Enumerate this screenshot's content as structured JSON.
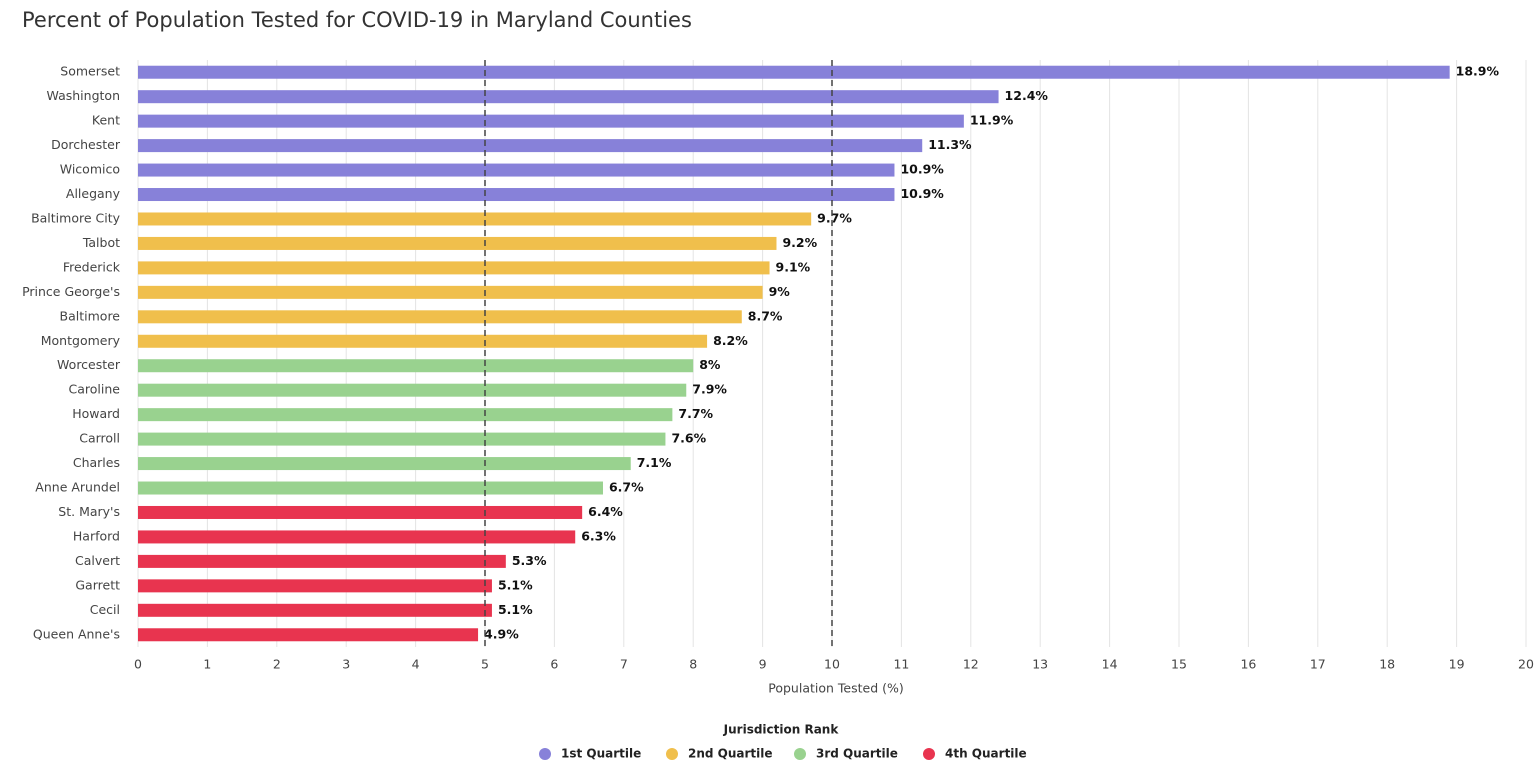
{
  "chart_data": {
    "type": "bar",
    "orientation": "horizontal",
    "title": "Percent of Population Tested for COVID-19 in Maryland Counties",
    "categories": [
      "Somerset",
      "Washington",
      "Kent",
      "Dorchester",
      "Wicomico",
      "Allegany",
      "Baltimore City",
      "Talbot",
      "Frederick",
      "Prince George's",
      "Baltimore",
      "Montgomery",
      "Worcester",
      "Caroline",
      "Howard",
      "Carroll",
      "Charles",
      "Anne Arundel",
      "St. Mary's",
      "Harford",
      "Calvert",
      "Garrett",
      "Cecil",
      "Queen Anne's"
    ],
    "series": [
      {
        "name": "1st Quartile",
        "color": "#8781d9",
        "values": [
          18.9,
          12.4,
          11.9,
          11.3,
          10.9,
          10.9,
          null,
          null,
          null,
          null,
          null,
          null,
          null,
          null,
          null,
          null,
          null,
          null,
          null,
          null,
          null,
          null,
          null,
          null
        ],
        "value_labels": [
          "18.9%",
          "12.4%",
          "11.9%",
          "11.3%",
          "10.9%",
          "10.9%",
          null,
          null,
          null,
          null,
          null,
          null,
          null,
          null,
          null,
          null,
          null,
          null,
          null,
          null,
          null,
          null,
          null,
          null
        ]
      },
      {
        "name": "2nd Quartile",
        "color": "#f0bf4c",
        "values": [
          null,
          null,
          null,
          null,
          null,
          null,
          9.7,
          9.2,
          9.1,
          9,
          8.7,
          8.2,
          null,
          null,
          null,
          null,
          null,
          null,
          null,
          null,
          null,
          null,
          null,
          null
        ],
        "value_labels": [
          null,
          null,
          null,
          null,
          null,
          null,
          "9.7%",
          "9.2%",
          "9.1%",
          "9%",
          "8.7%",
          "8.2%",
          null,
          null,
          null,
          null,
          null,
          null,
          null,
          null,
          null,
          null,
          null,
          null
        ]
      },
      {
        "name": "3rd Quartile",
        "color": "#99d28f",
        "values": [
          null,
          null,
          null,
          null,
          null,
          null,
          null,
          null,
          null,
          null,
          null,
          null,
          8,
          7.9,
          7.7,
          7.6,
          7.1,
          6.7,
          null,
          null,
          null,
          null,
          null,
          null
        ],
        "value_labels": [
          null,
          null,
          null,
          null,
          null,
          null,
          null,
          null,
          null,
          null,
          null,
          null,
          "8%",
          "7.9%",
          "7.7%",
          "7.6%",
          "7.1%",
          "6.7%",
          null,
          null,
          null,
          null,
          null,
          null
        ]
      },
      {
        "name": "4th Quartile",
        "color": "#e8344f",
        "values": [
          null,
          null,
          null,
          null,
          null,
          null,
          null,
          null,
          null,
          null,
          null,
          null,
          null,
          null,
          null,
          null,
          null,
          null,
          6.4,
          6.3,
          5.3,
          5.1,
          5.1,
          4.9
        ],
        "value_labels": [
          null,
          null,
          null,
          null,
          null,
          null,
          null,
          null,
          null,
          null,
          null,
          null,
          null,
          null,
          null,
          null,
          null,
          null,
          "6.4%",
          "6.3%",
          "5.3%",
          "5.1%",
          "5.1%",
          "4.9%"
        ]
      }
    ],
    "xlabel": "Population Tested (%)",
    "xlim": [
      0,
      20
    ],
    "xticks": [
      0,
      1,
      2,
      3,
      4,
      5,
      6,
      7,
      8,
      9,
      10,
      11,
      12,
      13,
      14,
      15,
      16,
      17,
      18,
      19,
      20
    ],
    "reference_lines": [
      5,
      10
    ],
    "grid": true,
    "legend_title": "Jurisdiction Rank",
    "legend_position": "bottom"
  }
}
